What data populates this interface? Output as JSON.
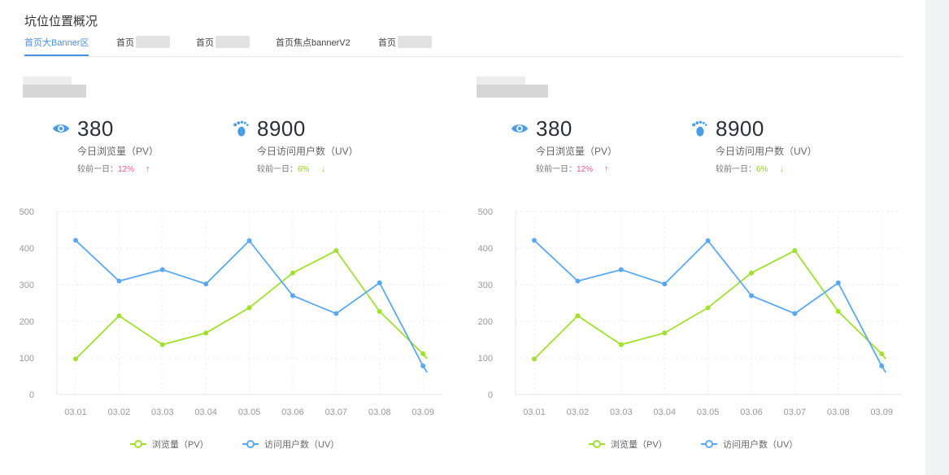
{
  "page": {
    "title": "坑位位置概况",
    "tabs": [
      {
        "label": "首页大Banner区",
        "active": true
      },
      {
        "label": "首页",
        "active": false
      },
      {
        "label": "首页",
        "active": false
      },
      {
        "label": "首页焦点bannerV2",
        "active": false
      },
      {
        "label": "首页",
        "active": false
      }
    ]
  },
  "colors": {
    "pv": "#a0e02f",
    "uv": "#5aa8f5",
    "up": "#f0578a",
    "down": "#8fd223",
    "accent": "#4a90e2"
  },
  "panels": [
    {
      "stats": [
        {
          "icon": "eye-icon",
          "value": "380",
          "label": "今日浏览量（PV）",
          "compare_label": "较前一日：",
          "compare_value": "12%",
          "arrow": "↑",
          "direction": "up"
        },
        {
          "icon": "footprint-icon",
          "value": "8900",
          "label": "今日访问用户数（UV）",
          "compare_label": "较前一日：",
          "compare_value": "6%",
          "arrow": "↓",
          "direction": "down"
        }
      ],
      "chart_data": {
        "type": "line",
        "categories": [
          "03.01",
          "03.02",
          "03.03",
          "03.04",
          "03.05",
          "03.06",
          "03.07",
          "03.08",
          "03.09"
        ],
        "ylim": [
          0,
          500
        ],
        "yticks": [
          "0",
          "100",
          "200",
          "300",
          "400",
          "500"
        ],
        "grid": true,
        "legend_position": "bottom",
        "series": [
          {
            "name": "浏览量（PV）",
            "key": "pv",
            "values": [
              97,
              215,
              136,
              168,
              237,
              332,
              393,
              227,
              111
            ]
          },
          {
            "name": "访问用户数（UV）",
            "key": "uv",
            "values": [
              421,
              310,
              341,
              302,
              420,
              270,
              221,
              305,
              78
            ]
          }
        ]
      }
    },
    {
      "stats": [
        {
          "icon": "eye-icon",
          "value": "380",
          "label": "今日浏览量（PV）",
          "compare_label": "较前一日：",
          "compare_value": "12%",
          "arrow": "↑",
          "direction": "up"
        },
        {
          "icon": "footprint-icon",
          "value": "8900",
          "label": "今日访问用户数（UV）",
          "compare_label": "较前一日：",
          "compare_value": "6%",
          "arrow": "↓",
          "direction": "down"
        }
      ],
      "chart_data": {
        "type": "line",
        "categories": [
          "03.01",
          "03.02",
          "03.03",
          "03.04",
          "03.05",
          "03.06",
          "03.07",
          "03.08",
          "03.09"
        ],
        "ylim": [
          0,
          500
        ],
        "yticks": [
          "0",
          "100",
          "200",
          "300",
          "400",
          "500"
        ],
        "grid": true,
        "legend_position": "bottom",
        "series": [
          {
            "name": "浏览量（PV）",
            "key": "pv",
            "values": [
              97,
              215,
              136,
              168,
              237,
              332,
              393,
              227,
              111
            ]
          },
          {
            "name": "访问用户数（UV）",
            "key": "uv",
            "values": [
              421,
              310,
              341,
              302,
              420,
              270,
              221,
              305,
              78
            ]
          }
        ]
      }
    }
  ]
}
